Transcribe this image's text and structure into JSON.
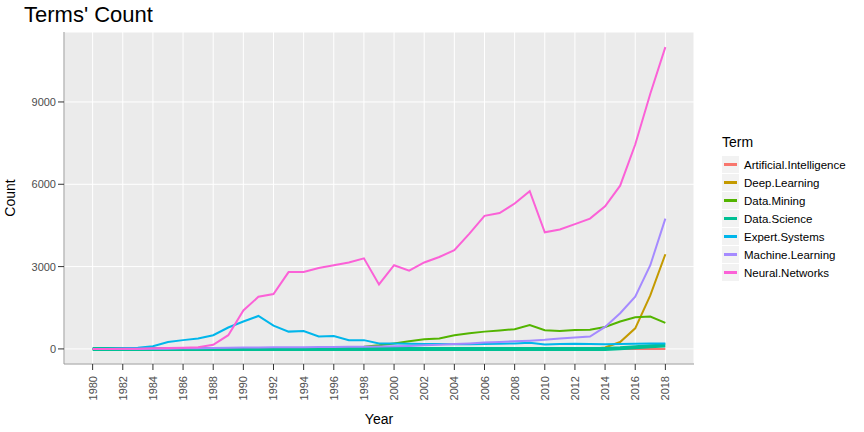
{
  "chart_data": {
    "type": "line",
    "title": "Terms' Count",
    "x_label": "Year",
    "y_label": "Count",
    "legend_title": "Term",
    "legend": "right",
    "grid": true,
    "x": [
      1980,
      1981,
      1982,
      1983,
      1984,
      1985,
      1986,
      1987,
      1988,
      1989,
      1990,
      1991,
      1992,
      1993,
      1994,
      1995,
      1996,
      1997,
      1998,
      1999,
      2000,
      2001,
      2002,
      2003,
      2004,
      2005,
      2006,
      2007,
      2008,
      2009,
      2010,
      2011,
      2012,
      2013,
      2014,
      2015,
      2016,
      2017,
      2018
    ],
    "xlim": [
      1978.1,
      2019.9
    ],
    "xticks": [
      1980,
      1982,
      1984,
      1986,
      1988,
      1990,
      1992,
      1994,
      1996,
      1998,
      2000,
      2002,
      2004,
      2006,
      2008,
      2010,
      2012,
      2014,
      2016,
      2018
    ],
    "ylim": [
      -550,
      11550
    ],
    "yticks": [
      0,
      3000,
      6000,
      9000
    ],
    "series": [
      {
        "name": "Artificial.Intelligence",
        "color": "#F8766D",
        "values": [
          0,
          0,
          0,
          0,
          0,
          0,
          0,
          0,
          0,
          0,
          0,
          0,
          0,
          0,
          0,
          0,
          0,
          0,
          0,
          0,
          0,
          0,
          0,
          0,
          0,
          0,
          0,
          0,
          0,
          0,
          0,
          0,
          0,
          0,
          0,
          0,
          0,
          0,
          0
        ]
      },
      {
        "name": "Deep.Learning",
        "color": "#C49A00",
        "values": [
          0,
          0,
          0,
          0,
          0,
          0,
          0,
          0,
          0,
          0,
          0,
          0,
          0,
          0,
          0,
          0,
          0,
          0,
          0,
          0,
          0,
          0,
          0,
          0,
          0,
          0,
          0,
          0,
          0,
          0,
          0,
          0,
          0,
          0,
          50,
          250,
          750,
          1950,
          3450
        ]
      },
      {
        "name": "Data.Mining",
        "color": "#53B400",
        "values": [
          0,
          0,
          0,
          0,
          0,
          0,
          0,
          0,
          0,
          0,
          0,
          0,
          0,
          0,
          0,
          0,
          0,
          50,
          80,
          130,
          200,
          280,
          350,
          380,
          500,
          570,
          630,
          670,
          720,
          870,
          680,
          650,
          690,
          700,
          800,
          1000,
          1150,
          1180,
          950
        ]
      },
      {
        "name": "Data.Science",
        "color": "#00C094",
        "values": [
          0,
          0,
          0,
          0,
          0,
          0,
          0,
          0,
          0,
          0,
          0,
          0,
          0,
          0,
          0,
          0,
          0,
          0,
          0,
          0,
          0,
          0,
          0,
          0,
          0,
          0,
          0,
          0,
          0,
          0,
          0,
          0,
          0,
          0,
          0,
          20,
          60,
          100,
          120
        ]
      },
      {
        "name": "Expert.Systems",
        "color": "#00B6EB",
        "values": [
          0,
          10,
          20,
          40,
          100,
          250,
          320,
          380,
          500,
          780,
          1000,
          1200,
          850,
          630,
          650,
          450,
          470,
          320,
          320,
          200,
          200,
          190,
          180,
          180,
          170,
          170,
          180,
          190,
          200,
          220,
          160,
          180,
          190,
          180,
          170,
          180,
          190,
          200,
          200
        ]
      },
      {
        "name": "Machine.Learning",
        "color": "#A58AFF",
        "values": [
          0,
          0,
          0,
          0,
          10,
          10,
          20,
          20,
          30,
          40,
          50,
          50,
          60,
          60,
          60,
          70,
          70,
          80,
          80,
          90,
          100,
          110,
          130,
          150,
          180,
          200,
          230,
          250,
          280,
          300,
          330,
          380,
          420,
          450,
          800,
          1300,
          1900,
          3050,
          4750
        ]
      },
      {
        "name": "Neural.Networks",
        "color": "#FB61D7",
        "values": [
          0,
          0,
          10,
          10,
          20,
          30,
          40,
          60,
          150,
          500,
          1400,
          1900,
          2000,
          2800,
          2800,
          2950,
          3050,
          3150,
          3300,
          2350,
          3050,
          2850,
          3150,
          3350,
          3600,
          4200,
          4850,
          4950,
          5300,
          5750,
          4250,
          4350,
          4550,
          4750,
          5200,
          5950,
          7450,
          9300,
          11000
        ]
      }
    ]
  }
}
